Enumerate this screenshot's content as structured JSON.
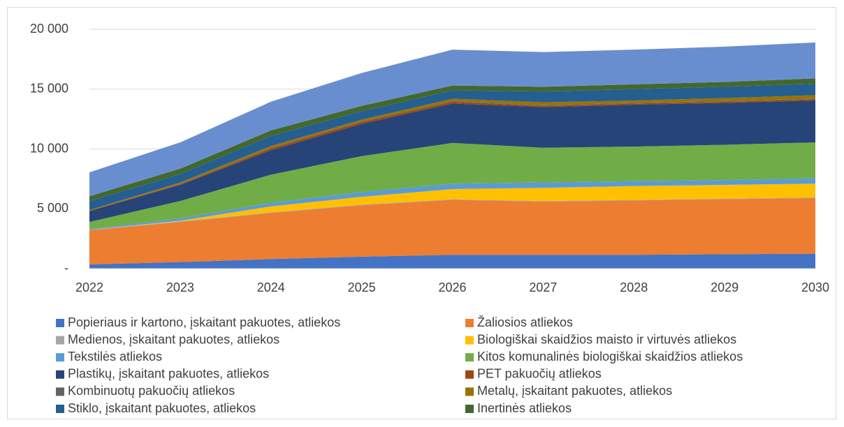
{
  "chart_data": {
    "type": "stacked_area",
    "categories": [
      "2022",
      "2023",
      "2024",
      "2025",
      "2026",
      "2027",
      "2028",
      "2029",
      "2030"
    ],
    "series": [
      {
        "name": "Popieriaus ir kartono, įskaitant pakuotes, atliekos",
        "color": "#4472c4",
        "values": [
          350,
          550,
          800,
          1000,
          1150,
          1150,
          1150,
          1200,
          1250
        ]
      },
      {
        "name": "Žaliosios atliekos",
        "color": "#ed7d31",
        "values": [
          2850,
          3350,
          3850,
          4300,
          4600,
          4450,
          4550,
          4600,
          4650
        ]
      },
      {
        "name": "Medienos, įskaitant pakuotes, atliekos",
        "color": "#a5a5a5",
        "values": [
          50,
          50,
          50,
          50,
          50,
          50,
          50,
          50,
          50
        ]
      },
      {
        "name": "Biologiškai skaidžios maisto ir virtuvės atliekos",
        "color": "#ffc000",
        "values": [
          0,
          50,
          500,
          650,
          850,
          1100,
          1150,
          1150,
          1150
        ]
      },
      {
        "name": "Tekstilės atliekos",
        "color": "#5b9bd5",
        "values": [
          50,
          200,
          300,
          400,
          450,
          450,
          400,
          400,
          450
        ]
      },
      {
        "name": "Kitos komunalinės biologiškai skaidžios atliekos",
        "color": "#70ad47",
        "values": [
          600,
          1450,
          2350,
          3000,
          3400,
          2900,
          2900,
          2950,
          3000
        ]
      },
      {
        "name": "Plastikų, įskaitant pakuotes, atliekos",
        "color": "#264478",
        "values": [
          900,
          1350,
          2050,
          2700,
          3300,
          3400,
          3500,
          3500,
          3500
        ]
      },
      {
        "name": "PET pakuočių atliekos",
        "color": "#9e480e",
        "values": [
          50,
          50,
          150,
          150,
          150,
          100,
          100,
          100,
          100
        ]
      },
      {
        "name": "Kombinuotų pakuočių atliekos",
        "color": "#636363",
        "values": [
          0,
          50,
          50,
          50,
          50,
          50,
          50,
          50,
          50
        ]
      },
      {
        "name": "Metalų, įskaitant pakuotes, atliekos",
        "color": "#997300",
        "values": [
          50,
          100,
          150,
          150,
          200,
          250,
          200,
          250,
          300
        ]
      },
      {
        "name": "Stiklo, įskaitant pakuotes, atliekos",
        "color": "#255e91",
        "values": [
          750,
          700,
          850,
          700,
          700,
          900,
          950,
          950,
          950
        ]
      },
      {
        "name": "Inertinės atliekos",
        "color": "#43682b",
        "values": [
          400,
          450,
          450,
          450,
          400,
          400,
          400,
          400,
          450
        ]
      },
      {
        "color": "#698ed0",
        "values": [
          2000,
          2200,
          2400,
          2750,
          3000,
          2900,
          2900,
          2950,
          3000
        ]
      }
    ],
    "ylim": [
      0,
      20000
    ],
    "yticks": [
      {
        "value": 0,
        "label": "-"
      },
      {
        "value": 5000,
        "label": "5 000"
      },
      {
        "value": 10000,
        "label": "10 000"
      },
      {
        "value": 15000,
        "label": "15 000"
      },
      {
        "value": 20000,
        "label": "20 000"
      }
    ],
    "grid": true,
    "legend": "bottom"
  }
}
